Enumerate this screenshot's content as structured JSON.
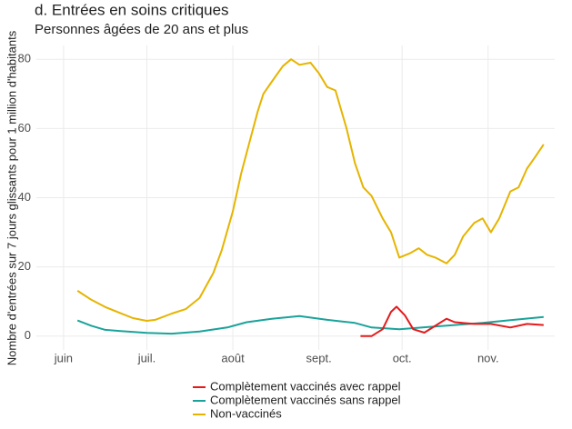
{
  "chart_data": {
    "type": "line",
    "title": "d. Entrées en soins critiques",
    "subtitle": "Personnes âgées de 20 ans et plus",
    "y_label": "Nombre d'entrées sur 7 jours glissants pour 1 million d'habitants",
    "xlim": [
      -9.8,
      177
    ],
    "ylim": [
      -4,
      84
    ],
    "xticks": [
      {
        "value": 0,
        "label": "juin"
      },
      {
        "value": 30,
        "label": "juil."
      },
      {
        "value": 61,
        "label": "août"
      },
      {
        "value": 92,
        "label": "sept."
      },
      {
        "value": 122,
        "label": "oct."
      },
      {
        "value": 153,
        "label": "nov."
      }
    ],
    "yticks": [
      0,
      20,
      40,
      60,
      80
    ],
    "grid": true,
    "series": [
      {
        "name": "Complètement vaccinés avec rappel",
        "color": "#e41a1c",
        "x": [
          107,
          111,
          115,
          118,
          120,
          123,
          126,
          130,
          134,
          138,
          141,
          148,
          154,
          161,
          167,
          173
        ],
        "values": [
          0,
          0,
          2,
          7,
          8.5,
          6,
          2,
          1,
          3,
          5,
          4,
          3.5,
          3.5,
          2.5,
          3.5,
          3.2
        ]
      },
      {
        "name": "Complètement vaccinés sans rappel",
        "color": "#1aa39a",
        "x": [
          5,
          10,
          15,
          20,
          30,
          39,
          49,
          59,
          66,
          75,
          85,
          95,
          105,
          111,
          121,
          131,
          141,
          151,
          161,
          173
        ],
        "values": [
          4.5,
          3,
          1.8,
          1.5,
          0.9,
          0.7,
          1.3,
          2.5,
          4,
          5,
          5.8,
          4.7,
          3.8,
          2.5,
          2,
          2.6,
          3.2,
          3.8,
          4.6,
          5.5
        ]
      },
      {
        "name": "Non-vaccinés",
        "color": "#e6b400",
        "x": [
          5,
          10,
          15,
          20,
          25,
          30,
          33,
          39,
          44,
          49,
          54,
          57,
          61,
          64,
          67,
          70,
          72,
          75,
          79,
          82,
          85,
          89,
          92,
          95,
          98,
          102,
          105,
          108,
          111,
          115,
          118,
          121,
          125,
          128,
          131,
          134,
          138,
          141,
          144,
          148,
          151,
          154,
          157,
          161,
          164,
          167,
          170,
          173
        ],
        "values": [
          13.1,
          10.5,
          8.4,
          6.8,
          5.2,
          4.4,
          4.7,
          6.5,
          7.8,
          11,
          18.3,
          24.8,
          36,
          47,
          56,
          65,
          70,
          73.5,
          78,
          80,
          78.4,
          79,
          76,
          72,
          71,
          60,
          50,
          43,
          40.5,
          34,
          30,
          22.7,
          24,
          25.4,
          23.5,
          22.7,
          21,
          23.5,
          28.8,
          32.7,
          34,
          30,
          34,
          41.8,
          43,
          48.4,
          51.8,
          55.4
        ]
      }
    ]
  }
}
